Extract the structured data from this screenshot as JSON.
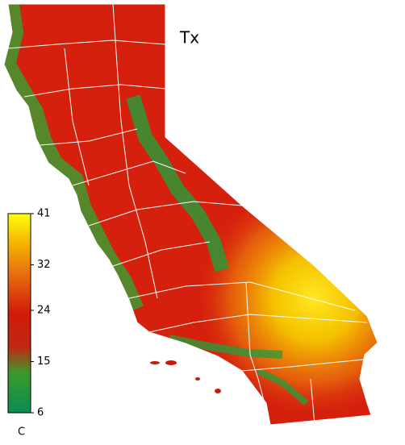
{
  "map": {
    "title": "Tx",
    "colorbar": {
      "unit": "C",
      "range": [
        6,
        41
      ],
      "ticks": [
        6,
        15,
        24,
        32,
        41
      ]
    }
  }
}
